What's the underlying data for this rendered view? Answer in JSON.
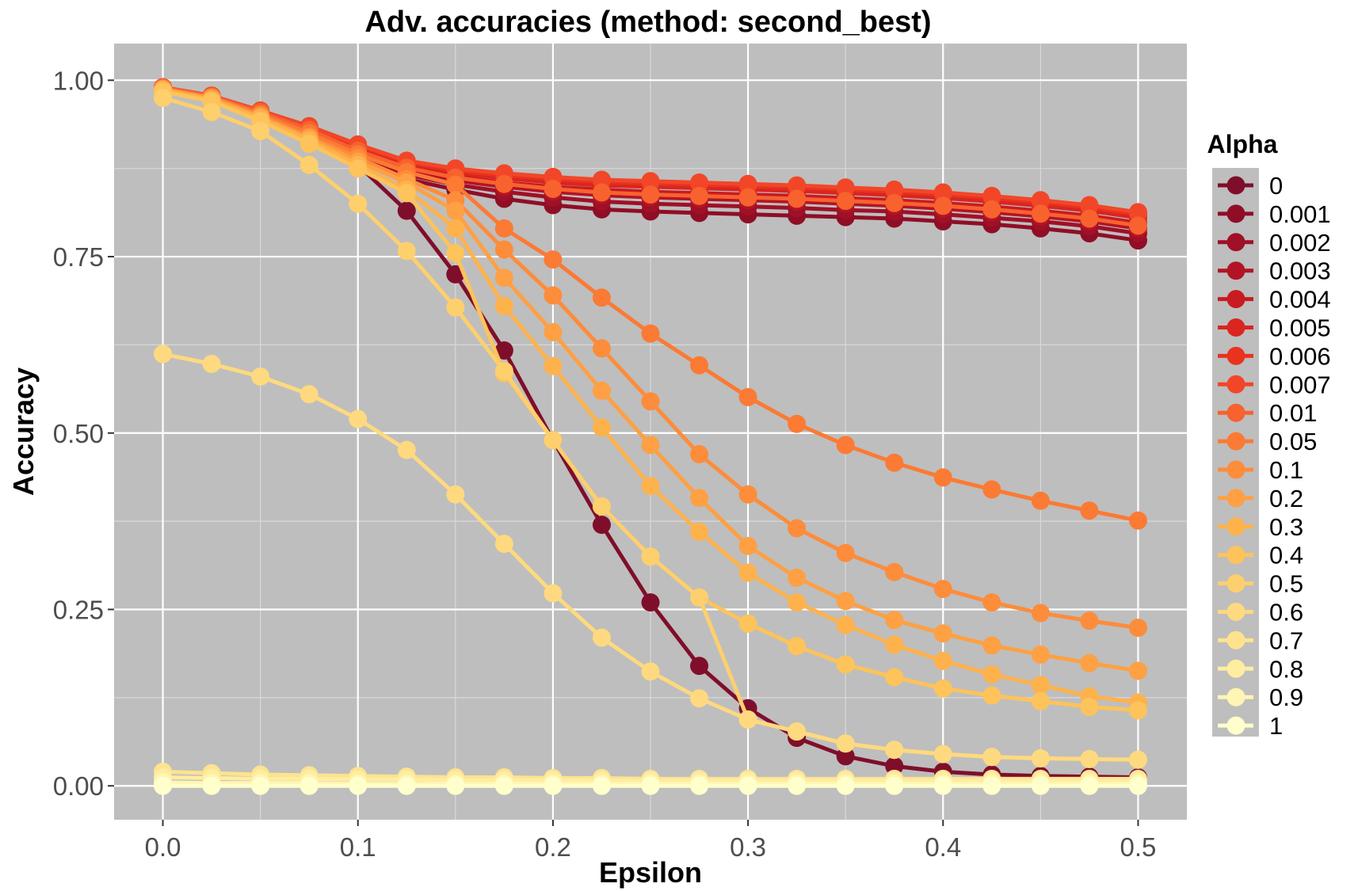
{
  "chart_data": {
    "type": "line",
    "title": "Adv. accuracies (method: second_best)",
    "xlabel": "Epsilon",
    "ylabel": "Accuracy",
    "xlim": [
      -0.025,
      0.525
    ],
    "ylim": [
      -0.048,
      1.052
    ],
    "x_ticks": [
      0.0,
      0.1,
      0.2,
      0.3,
      0.4,
      0.5
    ],
    "x_tick_labels": [
      "0.0",
      "0.1",
      "0.2",
      "0.3",
      "0.4",
      "0.5"
    ],
    "y_ticks": [
      0.0,
      0.25,
      0.5,
      0.75,
      1.0
    ],
    "y_tick_labels": [
      "0.00",
      "0.25",
      "0.50",
      "0.75",
      "1.00"
    ],
    "grid": true,
    "legend_title": "Alpha",
    "legend_position": "right",
    "x": [
      0,
      0.025,
      0.05,
      0.075,
      0.1,
      0.125,
      0.15,
      0.175,
      0.2,
      0.225,
      0.25,
      0.275,
      0.3,
      0.325,
      0.35,
      0.375,
      0.4,
      0.425,
      0.45,
      0.475,
      0.5
    ],
    "series": [
      {
        "name": "0",
        "color": "#7f0e2a",
        "values": [
          0.99,
          0.975,
          0.95,
          0.92,
          0.88,
          0.815,
          0.725,
          0.617,
          0.49,
          0.37,
          0.26,
          0.17,
          0.11,
          0.068,
          0.042,
          0.028,
          0.02,
          0.016,
          0.014,
          0.013,
          0.012
        ]
      },
      {
        "name": "0.001",
        "color": "#8f0e26",
        "values": [
          0.99,
          0.975,
          0.95,
          0.92,
          0.885,
          0.86,
          0.845,
          0.832,
          0.823,
          0.817,
          0.814,
          0.812,
          0.81,
          0.808,
          0.806,
          0.804,
          0.8,
          0.796,
          0.79,
          0.783,
          0.773
        ]
      },
      {
        "name": "0.002",
        "color": "#a01026",
        "values": [
          0.99,
          0.975,
          0.952,
          0.924,
          0.89,
          0.866,
          0.852,
          0.842,
          0.834,
          0.828,
          0.825,
          0.823,
          0.821,
          0.819,
          0.816,
          0.814,
          0.81,
          0.805,
          0.8,
          0.793,
          0.783
        ]
      },
      {
        "name": "0.003",
        "color": "#b31425",
        "values": [
          0.99,
          0.976,
          0.953,
          0.927,
          0.895,
          0.872,
          0.858,
          0.849,
          0.842,
          0.837,
          0.834,
          0.832,
          0.83,
          0.828,
          0.825,
          0.822,
          0.818,
          0.813,
          0.807,
          0.8,
          0.79
        ]
      },
      {
        "name": "0.004",
        "color": "#c81b22",
        "values": [
          0.99,
          0.977,
          0.955,
          0.93,
          0.9,
          0.877,
          0.864,
          0.855,
          0.849,
          0.845,
          0.842,
          0.84,
          0.838,
          0.836,
          0.833,
          0.83,
          0.826,
          0.821,
          0.815,
          0.808,
          0.798
        ]
      },
      {
        "name": "0.005",
        "color": "#da2520",
        "values": [
          0.99,
          0.978,
          0.956,
          0.932,
          0.904,
          0.881,
          0.869,
          0.861,
          0.855,
          0.851,
          0.849,
          0.847,
          0.845,
          0.843,
          0.84,
          0.837,
          0.833,
          0.828,
          0.822,
          0.815,
          0.805
        ]
      },
      {
        "name": "0.006",
        "color": "#e8331f",
        "values": [
          0.99,
          0.978,
          0.957,
          0.934,
          0.907,
          0.884,
          0.872,
          0.865,
          0.86,
          0.856,
          0.854,
          0.852,
          0.85,
          0.848,
          0.845,
          0.842,
          0.838,
          0.833,
          0.827,
          0.82,
          0.81
        ]
      },
      {
        "name": "0.007",
        "color": "#f24628",
        "values": [
          0.99,
          0.978,
          0.957,
          0.935,
          0.909,
          0.886,
          0.875,
          0.868,
          0.863,
          0.859,
          0.857,
          0.855,
          0.853,
          0.851,
          0.848,
          0.845,
          0.841,
          0.836,
          0.83,
          0.823,
          0.813
        ]
      },
      {
        "name": "0.01",
        "color": "#f7622e",
        "values": [
          0.99,
          0.977,
          0.955,
          0.93,
          0.9,
          0.876,
          0.862,
          0.853,
          0.846,
          0.841,
          0.838,
          0.836,
          0.834,
          0.832,
          0.829,
          0.826,
          0.822,
          0.817,
          0.811,
          0.804,
          0.794
        ]
      },
      {
        "name": "0.05",
        "color": "#fb7a34",
        "values": [
          0.988,
          0.976,
          0.952,
          0.925,
          0.895,
          0.87,
          0.852,
          0.79,
          0.746,
          0.692,
          0.641,
          0.596,
          0.551,
          0.513,
          0.483,
          0.458,
          0.437,
          0.42,
          0.404,
          0.39,
          0.376
        ]
      },
      {
        "name": "0.1",
        "color": "#fd8c3b",
        "values": [
          0.988,
          0.975,
          0.95,
          0.92,
          0.89,
          0.86,
          0.83,
          0.76,
          0.695,
          0.62,
          0.545,
          0.47,
          0.413,
          0.365,
          0.33,
          0.303,
          0.279,
          0.26,
          0.245,
          0.234,
          0.224
        ]
      },
      {
        "name": "0.2",
        "color": "#fea043",
        "values": [
          0.987,
          0.974,
          0.948,
          0.918,
          0.885,
          0.855,
          0.815,
          0.72,
          0.643,
          0.56,
          0.483,
          0.408,
          0.34,
          0.295,
          0.262,
          0.235,
          0.216,
          0.199,
          0.186,
          0.174,
          0.163
        ]
      },
      {
        "name": "0.3",
        "color": "#feb24c",
        "values": [
          0.986,
          0.972,
          0.946,
          0.915,
          0.88,
          0.845,
          0.79,
          0.68,
          0.595,
          0.508,
          0.425,
          0.36,
          0.302,
          0.26,
          0.228,
          0.2,
          0.177,
          0.158,
          0.143,
          0.127,
          0.118
        ]
      },
      {
        "name": "0.4",
        "color": "#fec35a",
        "values": [
          0.984,
          0.97,
          0.942,
          0.91,
          0.875,
          0.84,
          0.755,
          0.585,
          0.49,
          0.396,
          0.325,
          0.267,
          0.23,
          0.198,
          0.172,
          0.154,
          0.138,
          0.128,
          0.12,
          0.112,
          0.107
        ]
      },
      {
        "name": "0.5",
        "color": "#fecf6d",
        "values": [
          0.975,
          0.955,
          0.928,
          0.88,
          0.825,
          0.758,
          0.678,
          0.588,
          0.49,
          0.396,
          0.325,
          0.267,
          0.094,
          0.077,
          0.06,
          0.051,
          0.045,
          0.041,
          0.039,
          0.038,
          0.037
        ]
      },
      {
        "name": "0.6",
        "color": "#fed97f",
        "values": [
          0.612,
          0.598,
          0.58,
          0.555,
          0.52,
          0.476,
          0.413,
          0.343,
          0.273,
          0.21,
          0.162,
          0.124,
          0.094,
          0.077,
          0.06,
          0.051,
          0.045,
          0.041,
          0.039,
          0.038,
          0.037
        ]
      },
      {
        "name": "0.7",
        "color": "#fee38f",
        "values": [
          0.02,
          0.018,
          0.016,
          0.015,
          0.014,
          0.013,
          0.012,
          0.012,
          0.011,
          0.011,
          0.01,
          0.01,
          0.01,
          0.01,
          0.01,
          0.01,
          0.01,
          0.01,
          0.01,
          0.01,
          0.01
        ]
      },
      {
        "name": "0.8",
        "color": "#ffeda0",
        "values": [
          0.012,
          0.011,
          0.01,
          0.01,
          0.009,
          0.009,
          0.008,
          0.008,
          0.008,
          0.007,
          0.007,
          0.007,
          0.007,
          0.007,
          0.007,
          0.007,
          0.007,
          0.007,
          0.007,
          0.007,
          0.007
        ]
      },
      {
        "name": "0.9",
        "color": "#fff5b5",
        "values": [
          0.005,
          0.004,
          0.004,
          0.004,
          0.003,
          0.003,
          0.003,
          0.003,
          0.003,
          0.003,
          0.003,
          0.003,
          0.003,
          0.003,
          0.003,
          0.003,
          0.003,
          0.003,
          0.003,
          0.003,
          0.003
        ]
      },
      {
        "name": "1",
        "color": "#ffffcc",
        "values": [
          0.0,
          0.0,
          0.0,
          0.0,
          0.0,
          0.0,
          0.0,
          0.0,
          0.0,
          0.0,
          0.0,
          0.0,
          0.0,
          0.0,
          0.0,
          0.0,
          0.0,
          0.0,
          0.0,
          0.0,
          0.0
        ]
      }
    ]
  }
}
